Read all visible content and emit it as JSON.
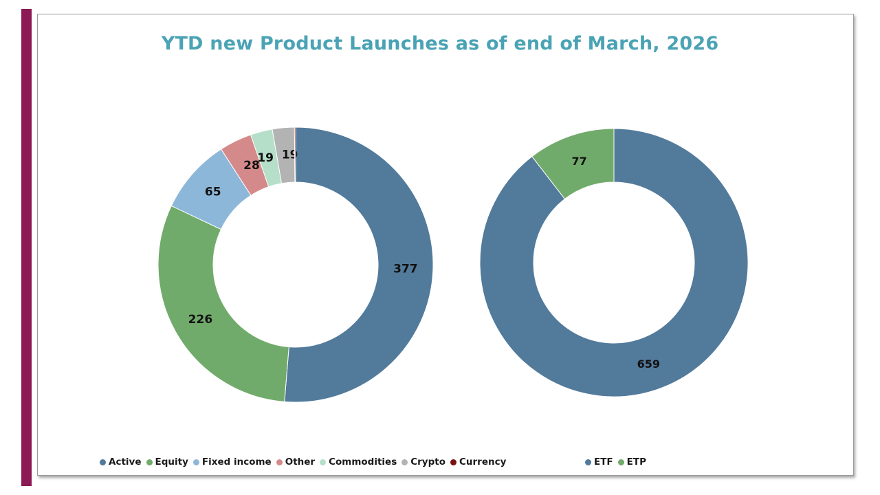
{
  "page": {
    "accent_color": "#8b1a55",
    "title": "YTD new Product Launches as of end of March, 2026",
    "title_color": "#4aa3b5"
  },
  "chart_data": [
    {
      "type": "pie",
      "style": "donut",
      "categories": [
        "Active",
        "Equity",
        "Fixed income",
        "Other",
        "Commodities",
        "Crypto",
        "Currency"
      ],
      "values": [
        377,
        226,
        65,
        28,
        19,
        19,
        1
      ],
      "data_labels": [
        "377",
        "226",
        "65",
        "28",
        "19",
        "19",
        ""
      ],
      "colors": [
        "#527a9b",
        "#71ab6b",
        "#8db7d9",
        "#d48a8a",
        "#b5dfc8",
        "#b3b3b3",
        "#7a1212"
      ],
      "legend_position": "bottom"
    },
    {
      "type": "pie",
      "style": "donut",
      "categories": [
        "ETF",
        "ETP"
      ],
      "values": [
        659,
        77
      ],
      "data_labels": [
        "659",
        "77"
      ],
      "colors": [
        "#527a9b",
        "#71ab6b"
      ],
      "legend_position": "bottom"
    }
  ]
}
